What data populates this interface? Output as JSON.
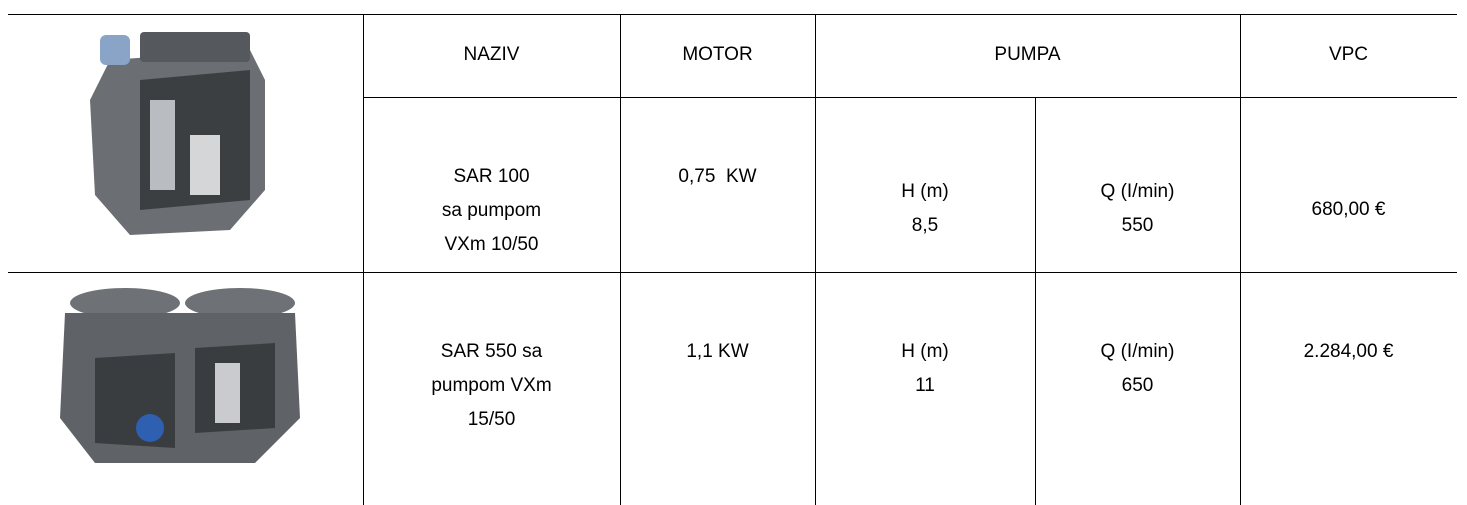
{
  "table": {
    "header": [
      "NAZIV",
      "MOTOR",
      "PUMPA",
      "VPC"
    ],
    "rows": [
      {
        "naziv": [
          "SAR 100",
          "sa pumpom",
          "VXm 10/50"
        ],
        "motor": "0,75  KW",
        "h": [
          "H (m)",
          "8,5"
        ],
        "q": [
          "Q (I/min)",
          "550"
        ],
        "vpc": "680,00 €"
      },
      {
        "naziv": [
          "SAR 550 sa",
          "pumpom VXm",
          "15/50"
        ],
        "motor": "1,1 KW",
        "h": [
          "H (m)",
          "11"
        ],
        "q": [
          "Q (I/min)",
          "650"
        ],
        "vpc": "2.284,00 €"
      }
    ]
  }
}
